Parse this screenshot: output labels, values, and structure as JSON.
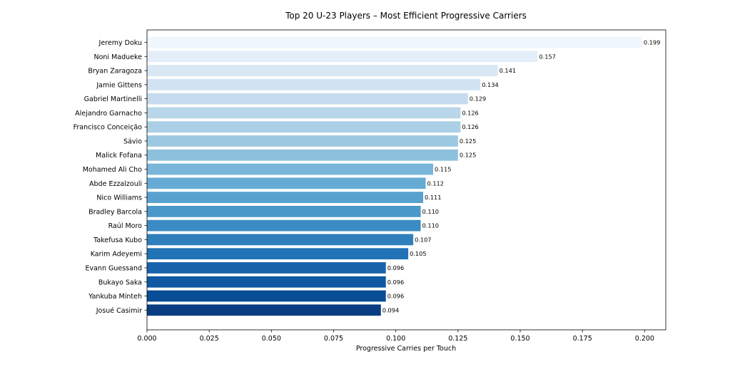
{
  "chart_data": {
    "type": "bar",
    "orientation": "horizontal",
    "title": "Top 20 U-23 Players – Most Efficient Progressive Carriers",
    "xlabel": "Progressive Carries per Touch",
    "ylabel": "",
    "xlim": [
      0,
      0.2085
    ],
    "xticks": [
      "0.000",
      "0.025",
      "0.050",
      "0.075",
      "0.100",
      "0.125",
      "0.150",
      "0.175",
      "0.200"
    ],
    "grid": false,
    "legend": "none",
    "colormap": "Blues",
    "categories": [
      "Jeremy Doku",
      "Noni Madueke",
      "Bryan Zaragoza",
      "Jamie Gittens",
      "Gabriel Martinelli",
      "Alejandro Garnacho",
      "Francisco Conceição",
      "Sávio",
      "Malick Fofana",
      "Mohamed Ali Cho",
      "Abde Ezzalzouli",
      "Nico Williams",
      "Bradley Barcola",
      "Raúl Moro",
      "Takefusa Kubo",
      "Karim Adeyemi",
      "Evann Guessand",
      "Bukayo Saka",
      "Yankuba Minteh",
      "Josué Casimir"
    ],
    "values": [
      0.199,
      0.157,
      0.141,
      0.134,
      0.129,
      0.126,
      0.126,
      0.125,
      0.125,
      0.115,
      0.112,
      0.111,
      0.11,
      0.11,
      0.107,
      0.105,
      0.096,
      0.096,
      0.096,
      0.094
    ],
    "value_labels": [
      "0.199",
      "0.157",
      "0.141",
      "0.134",
      "0.129",
      "0.126",
      "0.126",
      "0.125",
      "0.125",
      "0.115",
      "0.112",
      "0.111",
      "0.110",
      "0.110",
      "0.107",
      "0.105",
      "0.096",
      "0.096",
      "0.096",
      "0.094"
    ],
    "colors": [
      "#eff6fc",
      "#e3eef9",
      "#d9e7f5",
      "#d1e2f3",
      "#c6dbef",
      "#b9d6ea",
      "#abcfe5",
      "#9cc9e1",
      "#8dc1dd",
      "#7ab6d9",
      "#66abd4",
      "#58a1cf",
      "#4a98c9",
      "#3c8cc3",
      "#2f7fbc",
      "#2272b6",
      "#1865ac",
      "#0e59a2",
      "#084d96",
      "#083e81"
    ]
  }
}
